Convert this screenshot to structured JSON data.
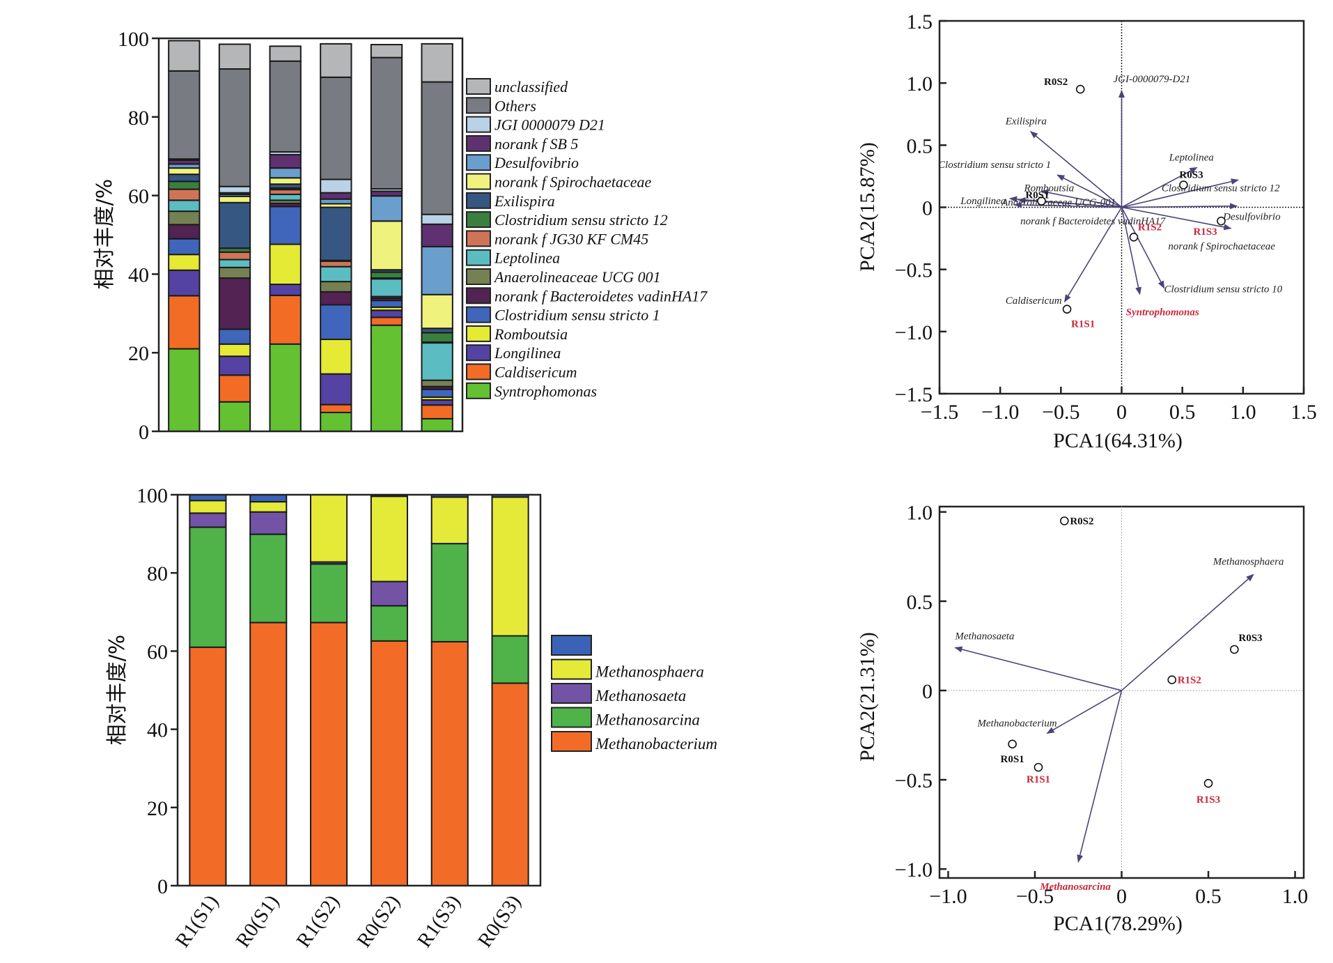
{
  "chart_data": [
    {
      "id": "bacteria-bar",
      "type": "bar",
      "stacked": true,
      "title": "",
      "ylabel": "相对丰度/%",
      "xlabel": "",
      "ylim": [
        0,
        100
      ],
      "yticks": [
        0,
        20,
        40,
        60,
        80,
        100
      ],
      "categories": [
        "R1(S1)",
        "R0(S1)",
        "R1(S2)",
        "R0(S2)",
        "R1(S3)",
        "R0(S3)"
      ],
      "show_category_labels": false,
      "legend_position": "right",
      "series": [
        {
          "name": "Syntrophomonas",
          "color": "#63c132",
          "values": [
            21.0,
            7.5,
            22.2,
            4.8,
            27.0,
            3.2
          ]
        },
        {
          "name": "Caldisericum",
          "color": "#f26c26",
          "values": [
            13.5,
            6.8,
            12.4,
            2.0,
            2.0,
            3.5
          ]
        },
        {
          "name": "Longilinea",
          "color": "#5543a3",
          "values": [
            6.5,
            4.8,
            2.8,
            7.8,
            1.8,
            1.3
          ]
        },
        {
          "name": "Romboutsia",
          "color": "#e5ea35",
          "values": [
            4.0,
            3.1,
            10.2,
            8.8,
            0.8,
            0.7
          ]
        },
        {
          "name": "Clostridium sensu stricto 1",
          "color": "#3f66bb",
          "values": [
            4.0,
            3.8,
            9.6,
            8.8,
            1.7,
            2.0
          ]
        },
        {
          "name": "norank f Bacteroidetes vadinHA17",
          "color": "#522353",
          "values": [
            3.6,
            13.0,
            0.8,
            3.3,
            0.6,
            0.7
          ]
        },
        {
          "name": "Anaerolineaceae UCG 001",
          "color": "#758153",
          "values": [
            3.4,
            2.7,
            0.8,
            2.6,
            0.4,
            1.6
          ]
        },
        {
          "name": "Leptolinea",
          "color": "#5bbdc2",
          "values": [
            2.8,
            2.0,
            1.5,
            3.8,
            4.5,
            9.5
          ]
        },
        {
          "name": "norank f JG30 KF CM45",
          "color": "#d07457",
          "values": [
            2.8,
            1.9,
            1.2,
            1.4,
            0.2,
            0.2
          ]
        },
        {
          "name": "Clostridium sensu stricto 12",
          "color": "#3a7f3f",
          "values": [
            2.0,
            1.0,
            0.4,
            0.2,
            1.5,
            2.4
          ]
        },
        {
          "name": "Exilispira",
          "color": "#365781",
          "values": [
            1.8,
            11.6,
            1.0,
            13.5,
            0.6,
            1.1
          ]
        },
        {
          "name": "norank f Spirochaetaceae",
          "color": "#f0f27e",
          "values": [
            1.6,
            1.6,
            1.6,
            0.9,
            12.4,
            8.6
          ]
        },
        {
          "name": "Desulfovibrio",
          "color": "#6a9ecd",
          "values": [
            1.0,
            0.5,
            2.5,
            1.2,
            6.4,
            12.2
          ]
        },
        {
          "name": "norank f SB 5",
          "color": "#5f3170",
          "values": [
            1.0,
            0.4,
            3.4,
            1.6,
            1.2,
            5.7
          ]
        },
        {
          "name": "JGI 0000079 D21",
          "color": "#b9d2e7",
          "values": [
            0.3,
            1.6,
            0.7,
            3.4,
            0.6,
            2.5
          ]
        },
        {
          "name": "Others",
          "color": "#787b82",
          "values": [
            22.4,
            29.9,
            23.1,
            26.0,
            33.4,
            33.7
          ]
        },
        {
          "name": "unclassified",
          "color": "#b5b6b8",
          "values": [
            7.7,
            6.3,
            3.8,
            8.5,
            3.3,
            9.7
          ]
        }
      ],
      "legend": [
        "unclassified",
        "Others",
        "JGI 0000079 D21",
        "norank f SB 5",
        "Desulfovibrio",
        "norank f Spirochaetaceae",
        "Exilispira",
        "Clostridium sensu stricto 12",
        "norank f JG30 KF CM45",
        "Leptolinea",
        "Anaerolineaceae UCG 001",
        "norank f Bacteroidetes vadinHA17",
        "Clostridium sensu stricto 1",
        "Romboutsia",
        "Longilinea",
        "Caldisericum",
        "Syntrophomonas"
      ]
    },
    {
      "id": "bacteria-pca",
      "type": "scatter",
      "subtype": "biplot",
      "xlabel": "PCA1(64.31%)",
      "ylabel": "PCA2(15.87%)",
      "xlim": [
        -1.5,
        1.5
      ],
      "ylim": [
        -1.5,
        1.5
      ],
      "xticks": [
        "−1.5",
        "−1.0",
        "−0.5",
        "0",
        "0.5",
        "1.0",
        "1.5"
      ],
      "yticks": [
        "−1.5",
        "−1.0",
        "−0.5",
        "0",
        "0.5",
        "1.0",
        "1.5"
      ],
      "xtick_values": [
        -1.5,
        -1.0,
        -0.5,
        0,
        0.5,
        1.0,
        1.5
      ],
      "ytick_values": [
        -1.5,
        -1.0,
        -0.5,
        0,
        0.5,
        1.0,
        1.5
      ],
      "samples": [
        {
          "name": "R0S2",
          "x": -0.34,
          "y": 0.95,
          "color": "#111111"
        },
        {
          "name": "R0S1",
          "x": -0.66,
          "y": 0.05,
          "color": "#111111"
        },
        {
          "name": "R0S3",
          "x": 0.51,
          "y": 0.18,
          "color": "#111111"
        },
        {
          "name": "R1S1",
          "x": -0.45,
          "y": -0.82,
          "color": "#c8283a"
        },
        {
          "name": "R1S2",
          "x": 0.1,
          "y": -0.24,
          "color": "#c8283a"
        },
        {
          "name": "R1S3",
          "x": 0.82,
          "y": -0.11,
          "color": "#c8283a"
        }
      ],
      "loadings": [
        {
          "name": "JGI-0000079-D21",
          "x": 0.0,
          "y": 0.94,
          "highlight": false
        },
        {
          "name": "Exilispira",
          "x": -0.75,
          "y": 0.61,
          "highlight": false
        },
        {
          "name": "Clostridium sensu stricto 1",
          "x": -0.53,
          "y": 0.26,
          "highlight": false
        },
        {
          "name": "Romboutsia",
          "x": -0.66,
          "y": 0.13,
          "highlight": false
        },
        {
          "name": "Longilinea",
          "x": -0.85,
          "y": 0.06,
          "highlight": false
        },
        {
          "name": "Anaerolineaceae UCG-001",
          "x": -0.92,
          "y": 0.07,
          "highlight": false
        },
        {
          "name": "norank f Bacteroidetes vadinHA17",
          "x": -0.88,
          "y": 0.02,
          "highlight": false
        },
        {
          "name": "Leptolinea",
          "x": 0.62,
          "y": 0.32,
          "highlight": false
        },
        {
          "name": "Clostridium sensu stricto 12",
          "x": 0.96,
          "y": 0.22,
          "highlight": false
        },
        {
          "name": "Desulfovibrio",
          "x": 0.95,
          "y": 0.01,
          "highlight": false
        },
        {
          "name": "norank f Spirochaetaceae",
          "x": 0.9,
          "y": -0.17,
          "highlight": false
        },
        {
          "name": "Clostridium sensu stricto 10",
          "x": 0.35,
          "y": -0.65,
          "highlight": false
        },
        {
          "name": "Syntrophomonas",
          "x": 0.15,
          "y": -0.7,
          "highlight": true
        },
        {
          "name": "Caldisericum",
          "x": -0.47,
          "y": -0.76,
          "highlight": false
        }
      ]
    },
    {
      "id": "archaea-bar",
      "type": "bar",
      "stacked": true,
      "title": "",
      "ylabel": "相对丰度/%",
      "xlabel": "",
      "ylim": [
        0,
        100
      ],
      "yticks": [
        0,
        20,
        40,
        60,
        80,
        100
      ],
      "categories": [
        "R1(S1)",
        "R0(S1)",
        "R1(S2)",
        "R0(S2)",
        "R1(S3)",
        "R0(S3)"
      ],
      "legend_position": "right",
      "series": [
        {
          "name": "Methanobacterium",
          "color": "#f26c28",
          "values": [
            61.0,
            67.3,
            67.3,
            62.6,
            62.4,
            51.8
          ]
        },
        {
          "name": "Methanosarcina",
          "color": "#4fb349",
          "values": [
            30.7,
            22.6,
            15.0,
            9.0,
            25.1,
            12.1
          ]
        },
        {
          "name": "Methanosaeta",
          "color": "#7353a6",
          "values": [
            3.6,
            5.7,
            0.5,
            6.2,
            0.0,
            0.0
          ]
        },
        {
          "name": "Methanosphaera",
          "color": "#e5ea38",
          "values": [
            3.2,
            2.6,
            17.2,
            21.8,
            11.9,
            35.5
          ]
        },
        {
          "name": "",
          "color": "#3a63b7",
          "values": [
            1.5,
            1.8,
            0.0,
            0.4,
            0.6,
            0.6
          ]
        }
      ],
      "legend": [
        "",
        "Methanosphaera",
        "Methanosaeta",
        "Methanosarcina",
        "Methanobacterium"
      ]
    },
    {
      "id": "archaea-pca",
      "type": "scatter",
      "subtype": "biplot",
      "xlabel": "PCA1(78.29%)",
      "ylabel": "PCA2(21.31%)",
      "xlim": [
        -1.05,
        1.05
      ],
      "ylim": [
        -1.05,
        1.03
      ],
      "xticks": [
        "−1.0",
        "−0.5",
        "0",
        "0.5",
        "1.0"
      ],
      "yticks": [
        "−1.0",
        "−0.5",
        "0",
        "0.5",
        "1.0"
      ],
      "xtick_values": [
        -1.0,
        -0.5,
        0,
        0.5,
        1.0
      ],
      "ytick_values": [
        -1.0,
        -0.5,
        0,
        0.5,
        1.0
      ],
      "samples": [
        {
          "name": "R0S2",
          "x": -0.33,
          "y": 0.95,
          "color": "#111111",
          "label_side": "right"
        },
        {
          "name": "R0S3",
          "x": 0.65,
          "y": 0.23,
          "color": "#111111",
          "label_side": "above-right"
        },
        {
          "name": "R1S2",
          "x": 0.29,
          "y": 0.06,
          "color": "#c8283a",
          "label_side": "right"
        },
        {
          "name": "R0S1",
          "x": -0.63,
          "y": -0.3,
          "color": "#111111",
          "label_side": "below"
        },
        {
          "name": "R1S1",
          "x": -0.48,
          "y": -0.43,
          "color": "#c8283a",
          "label_side": "below"
        },
        {
          "name": "R1S3",
          "x": 0.5,
          "y": -0.52,
          "color": "#c8283a",
          "label_side": "below"
        }
      ],
      "loadings": [
        {
          "name": "Methanosphaera",
          "x": 0.76,
          "y": 0.65,
          "highlight": false
        },
        {
          "name": "Methanosaeta",
          "x": -0.96,
          "y": 0.24,
          "highlight": false
        },
        {
          "name": "Methanobacterium",
          "x": -0.43,
          "y": -0.24,
          "highlight": false
        },
        {
          "name": "Methanosarcina",
          "x": -0.25,
          "y": -0.96,
          "highlight": true
        }
      ]
    }
  ]
}
